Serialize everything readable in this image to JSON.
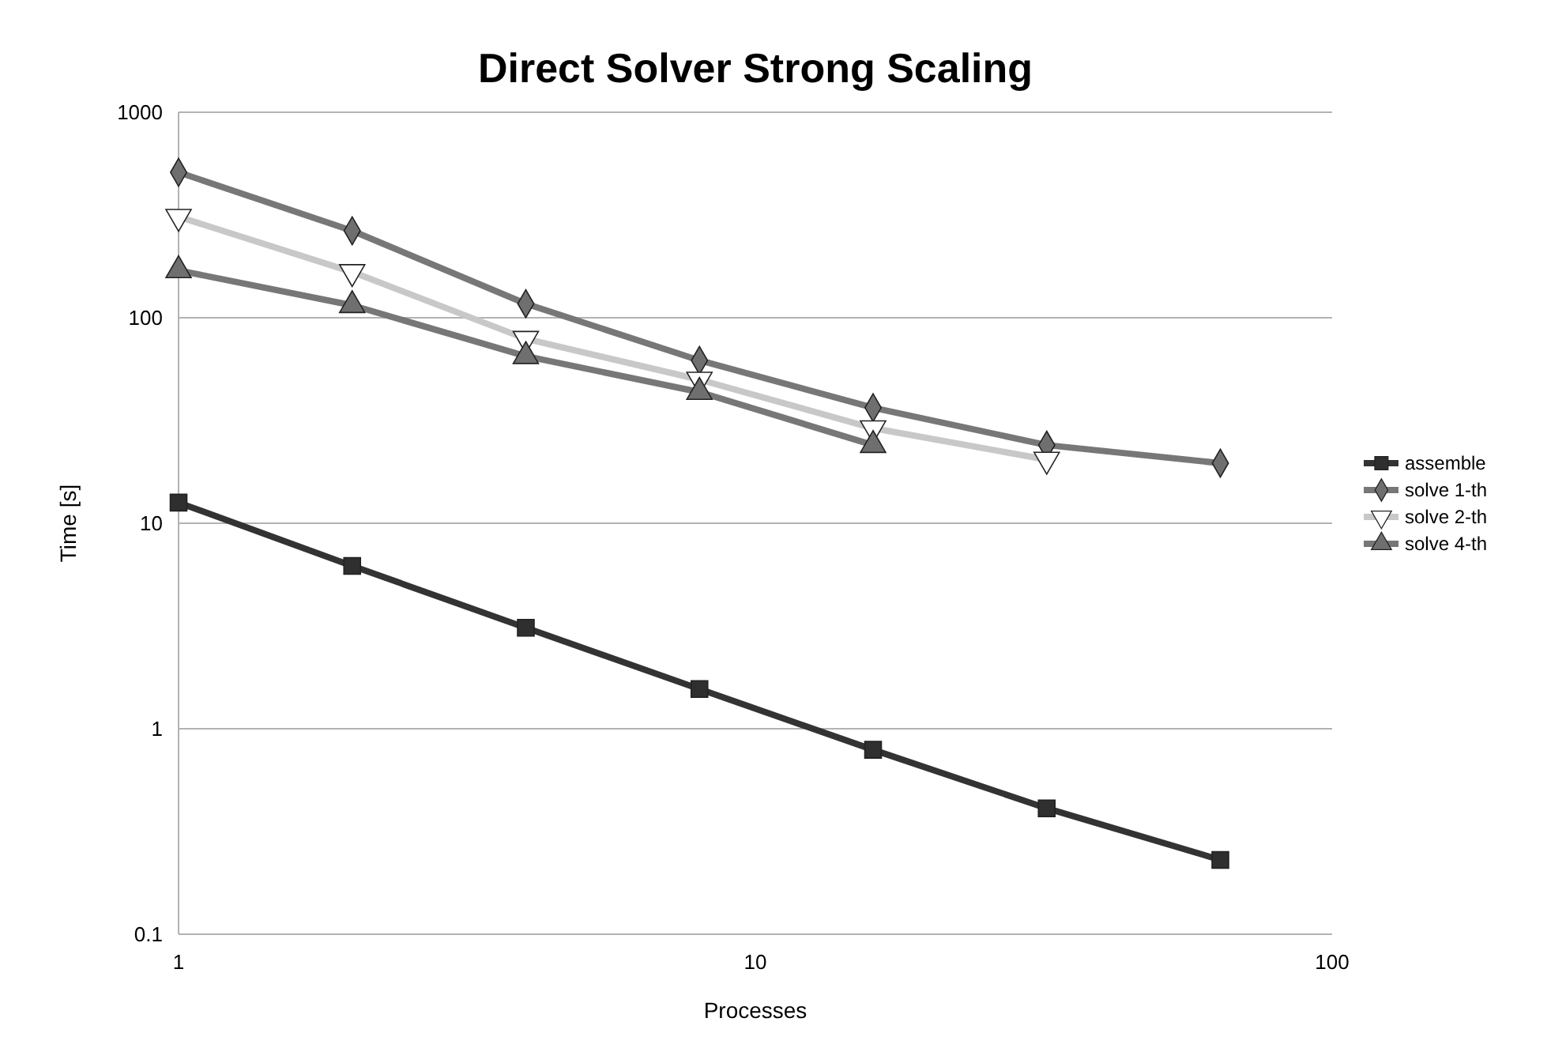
{
  "chart_data": {
    "type": "line",
    "title": "Direct Solver Strong Scaling",
    "xlabel": "Processes",
    "ylabel": "Time [s]",
    "log": "xy",
    "xlim": [
      1,
      100
    ],
    "xticks": [
      1,
      10,
      100
    ],
    "ylim": [
      0.1,
      1000
    ],
    "yticks": [
      0.1,
      1,
      10,
      100,
      1000
    ],
    "grid": "y",
    "legend": "right",
    "series": [
      {
        "name": "assemble",
        "color": "#333333",
        "marker": "square",
        "x": [
          1,
          2,
          4,
          8,
          16,
          32,
          64
        ],
        "values": [
          12.6,
          6.2,
          3.1,
          1.56,
          0.79,
          0.41,
          0.23
        ]
      },
      {
        "name": "solve 1-th",
        "color": "#777777",
        "marker": "diamond",
        "x": [
          1,
          2,
          4,
          8,
          16,
          32,
          64
        ],
        "values": [
          510,
          265,
          117,
          62,
          36.5,
          24,
          19.6
        ]
      },
      {
        "name": "solve 2-th",
        "color": "#c8c8c8",
        "marker": "triangle-down",
        "x": [
          1,
          2,
          4,
          8,
          16,
          32
        ],
        "values": [
          310,
          167,
          79,
          50,
          29,
          20.4
        ]
      },
      {
        "name": "solve 4-th",
        "color": "#777777",
        "marker": "triangle",
        "x": [
          1,
          2,
          4,
          8,
          16
        ],
        "values": [
          170,
          115,
          65,
          43.5,
          24
        ]
      }
    ]
  }
}
